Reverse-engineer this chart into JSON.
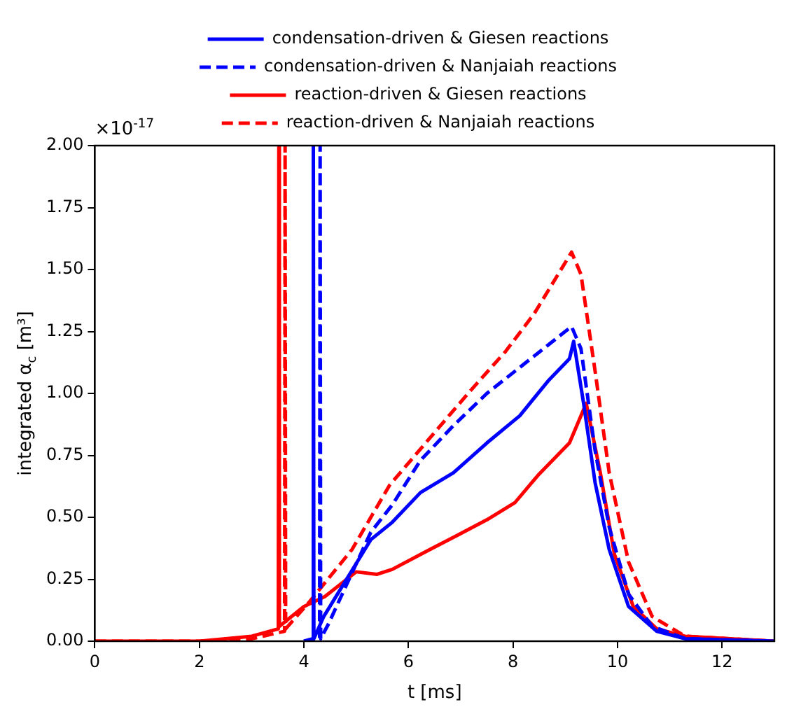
{
  "chart_data": {
    "type": "line",
    "xlabel": "t [ms]",
    "ylabel": "integrated α$_{c}$ [m³]",
    "annotations": [
      "×10$^{-17}$"
    ],
    "xlim": [
      0,
      13
    ],
    "xticks": [
      0,
      2,
      4,
      6,
      8,
      10,
      12
    ],
    "ylim": [
      0,
      2.0
    ],
    "yticks": [
      {
        "value": 0,
        "label": "0.00"
      },
      {
        "value": 0.25,
        "label": "0.25"
      },
      {
        "value": 0.5,
        "label": "0.50"
      },
      {
        "value": 0.75,
        "label": "0.75"
      },
      {
        "value": 1.0,
        "label": "1.00"
      },
      {
        "value": 1.25,
        "label": "1.25"
      },
      {
        "value": 1.5,
        "label": "1.50"
      },
      {
        "value": 1.75,
        "label": "1.75"
      },
      {
        "value": 2.0,
        "label": "2.00"
      }
    ],
    "grid": false,
    "legend": "top",
    "marker": "none",
    "series": [
      {
        "name": "condensation-driven & Giesen reactions",
        "color": "#0000ff",
        "line_style": "solid",
        "x": [
          4.0,
          4.17,
          4.18,
          4.19,
          4.38,
          5.28,
          5.69,
          6.23,
          6.86,
          7.5,
          8.13,
          8.67,
          9.08,
          9.16,
          9.35,
          9.57,
          9.84,
          10.21,
          10.75,
          11.3,
          13
        ],
        "values": [
          0.0,
          0.01,
          2.0,
          0.01,
          0.1,
          0.41,
          0.48,
          0.6,
          0.68,
          0.8,
          0.91,
          1.05,
          1.14,
          1.21,
          0.96,
          0.64,
          0.37,
          0.14,
          0.04,
          0.01,
          0
        ]
      },
      {
        "name": "condensation-driven & Nanjaiah reactions",
        "color": "#0000ff",
        "line_style": "dashed",
        "x": [
          4.0,
          4.3,
          4.31,
          4.32,
          4.47,
          5.28,
          5.69,
          6.23,
          6.86,
          7.5,
          8.04,
          8.58,
          9.12,
          9.3,
          9.57,
          9.84,
          10.21,
          10.66,
          11.3,
          13
        ],
        "values": [
          0.0,
          0.01,
          2.0,
          0.01,
          0.07,
          0.44,
          0.55,
          0.73,
          0.87,
          1.0,
          1.09,
          1.18,
          1.27,
          1.18,
          0.77,
          0.46,
          0.19,
          0.06,
          0.01,
          0
        ]
      },
      {
        "name": "reaction-driven & Giesen reactions",
        "color": "#ff0000",
        "line_style": "solid",
        "x": [
          0,
          2.0,
          3.0,
          3.51,
          3.52,
          3.53,
          4.0,
          4.4,
          5.0,
          5.4,
          5.69,
          6.41,
          6.96,
          7.5,
          8.04,
          8.48,
          9.08,
          9.4,
          9.67,
          9.94,
          10.3,
          10.75,
          11.29,
          13
        ],
        "values": [
          0,
          0.0,
          0.02,
          0.05,
          2.0,
          0.06,
          0.14,
          0.18,
          0.28,
          0.27,
          0.29,
          0.37,
          0.43,
          0.49,
          0.56,
          0.67,
          0.8,
          0.96,
          0.68,
          0.35,
          0.14,
          0.05,
          0.02,
          0
        ]
      },
      {
        "name": "reaction-driven & Nanjaiah reactions",
        "color": "#ff0000",
        "line_style": "dashed",
        "x": [
          0,
          2.0,
          3.0,
          3.63,
          3.64,
          3.65,
          4.11,
          4.92,
          5.64,
          6.41,
          7.14,
          7.86,
          8.4,
          9.12,
          9.3,
          9.57,
          9.84,
          10.21,
          10.66,
          11.29,
          13
        ],
        "values": [
          0,
          0.0,
          0.01,
          0.04,
          2.0,
          0.05,
          0.16,
          0.37,
          0.63,
          0.82,
          1.0,
          1.17,
          1.32,
          1.57,
          1.48,
          1.09,
          0.68,
          0.32,
          0.1,
          0.02,
          0
        ]
      }
    ]
  }
}
